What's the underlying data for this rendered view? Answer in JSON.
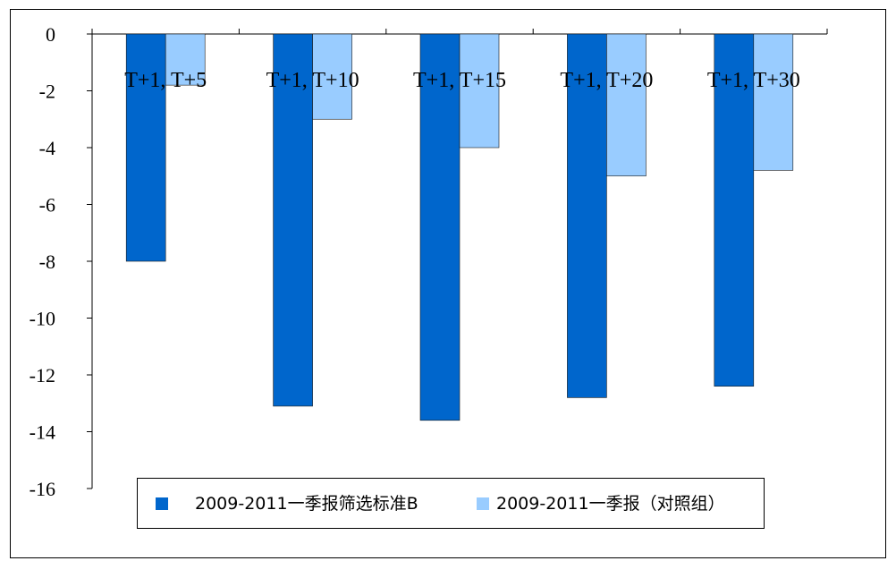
{
  "chart_data": {
    "type": "bar",
    "categories": [
      "T+1, T+5",
      "T+1, T+10",
      "T+1, T+15",
      "T+1, T+20",
      "T+1, T+30"
    ],
    "series": [
      {
        "name": "2009-2011一季报筛选标准B",
        "color": "#0066CC",
        "values": [
          -8.0,
          -13.1,
          -13.6,
          -12.8,
          -12.4
        ]
      },
      {
        "name": "2009-2011一季报（对照组）",
        "color": "#99CCFF",
        "values": [
          -1.8,
          -3.0,
          -4.0,
          -5.0,
          -4.8
        ]
      }
    ],
    "ylim": [
      -16,
      0
    ],
    "yticks": [
      0,
      -2,
      -4,
      -6,
      -8,
      -10,
      -12,
      -14,
      -16
    ],
    "ytick_labels": [
      "0",
      "-2",
      "-4",
      "-6",
      "-8",
      "-10",
      "-12",
      "-14",
      "-16"
    ],
    "xlabel": "",
    "ylabel": "",
    "grid": false,
    "legend_position": "bottom"
  }
}
